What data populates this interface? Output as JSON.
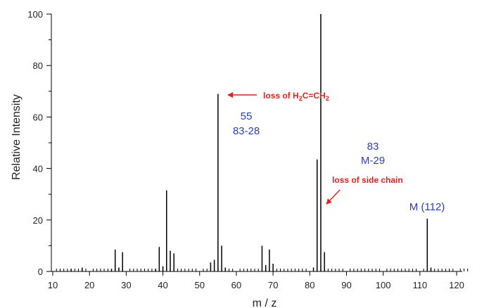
{
  "chart_data": {
    "type": "bar",
    "title": "",
    "xlabel": "m / z",
    "ylabel": "Relative Intensity",
    "xlim": [
      10,
      123
    ],
    "ylim": [
      0,
      100
    ],
    "x_ticks": [
      10,
      20,
      30,
      40,
      50,
      60,
      70,
      80,
      90,
      100,
      110,
      120
    ],
    "y_ticks": [
      0,
      20,
      40,
      60,
      80,
      100
    ],
    "grid": false,
    "x": [
      15,
      18,
      26,
      27,
      28,
      29,
      38,
      39,
      40,
      41,
      42,
      43,
      53,
      54,
      55,
      56,
      57,
      67,
      68,
      69,
      70,
      81,
      82,
      83,
      84,
      112,
      113
    ],
    "values": [
      1,
      1.5,
      1,
      8.5,
      1.5,
      7.5,
      1,
      9.5,
      2,
      31.5,
      8,
      7,
      3.5,
      4.5,
      69,
      10,
      1.5,
      10,
      2.5,
      8.5,
      3,
      1.5,
      43.5,
      100,
      7.5,
      20.5,
      1.5
    ],
    "annotations": {
      "loss_c2h4": {
        "pre": "loss of H",
        "sub1": "2",
        "mid": "C=CH",
        "sub2": "2"
      },
      "peak55_label": "55",
      "peak55_diff": "83-28",
      "peak83_label": "83",
      "peak83_diff": "M-29",
      "loss_side_chain": "loss of side chain",
      "molecular_ion": "M (112)"
    }
  }
}
